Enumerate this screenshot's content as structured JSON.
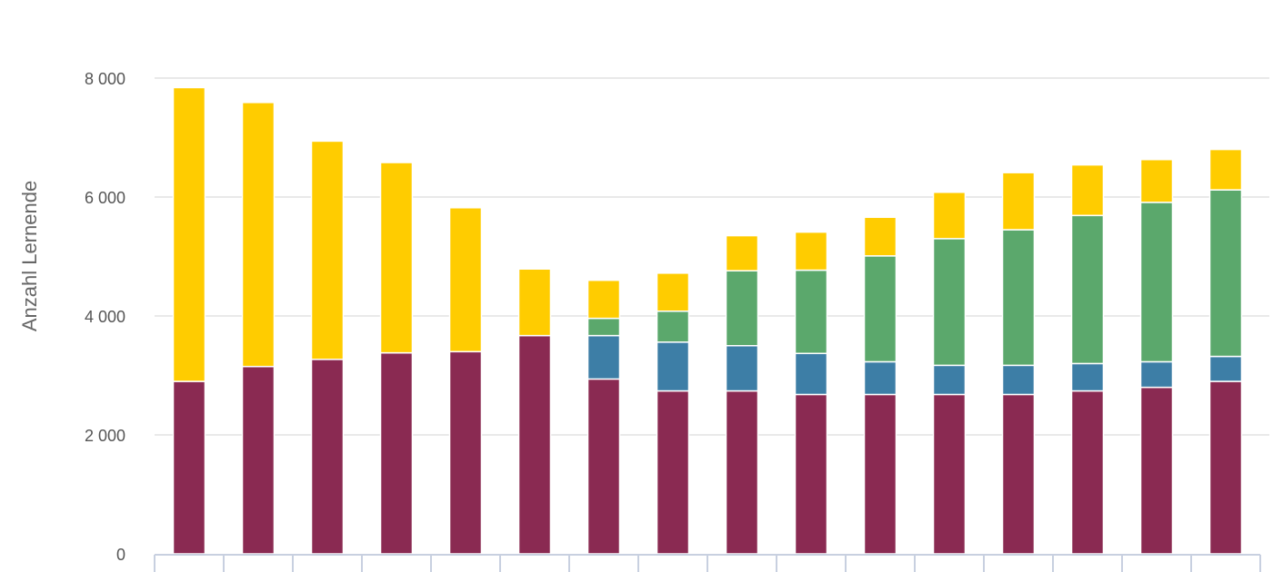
{
  "chart_data": {
    "type": "bar",
    "stacked": true,
    "ylabel": "Anzahl Lernende",
    "ylim": [
      0,
      8000
    ],
    "yticks": [
      0,
      2000,
      4000,
      6000,
      8000
    ],
    "ytick_labels": [
      "0",
      "2 000",
      "4 000",
      "6 000",
      "8 000"
    ],
    "grid": true,
    "categories": [
      "",
      "",
      "",
      "",
      "",
      "",
      "",
      "",
      "",
      "",
      "",
      "",
      "",
      "",
      "",
      ""
    ],
    "series": [
      {
        "color": "#8a2a52",
        "values": [
          2900,
          3150,
          3270,
          3380,
          3400,
          3670,
          2940,
          2740,
          2740,
          2680,
          2680,
          2680,
          2680,
          2740,
          2800,
          2900
        ]
      },
      {
        "color": "#3d7ea6",
        "values": [
          0,
          0,
          0,
          0,
          0,
          0,
          730,
          820,
          760,
          690,
          550,
          490,
          490,
          460,
          430,
          420
        ]
      },
      {
        "color": "#5ba86c",
        "values": [
          0,
          0,
          0,
          0,
          0,
          0,
          290,
          520,
          1260,
          1400,
          1780,
          2130,
          2280,
          2490,
          2680,
          2800
        ]
      },
      {
        "color": "#ffcc00",
        "values": [
          4940,
          4440,
          3670,
          3200,
          2420,
          1120,
          640,
          640,
          590,
          640,
          650,
          780,
          960,
          850,
          720,
          680
        ]
      }
    ]
  }
}
